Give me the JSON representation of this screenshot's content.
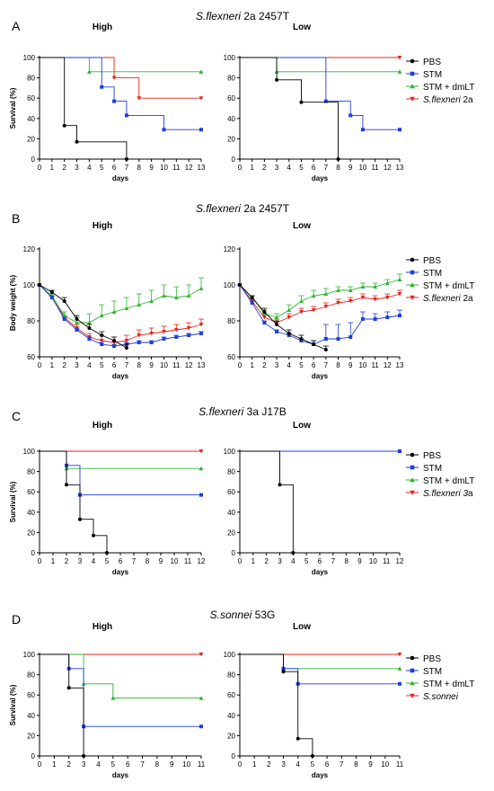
{
  "colors": {
    "PBS": "#000000",
    "STM": "#1f3fdd",
    "STM + dmLT": "#2fb52f",
    "Shigella": "#e8251c"
  },
  "chart_data": [
    {
      "panel": "A",
      "strain_italic": "S.flexneri",
      "strain_rest": " 2a 2457T",
      "type": "line",
      "ylabel": "Survival (%)",
      "xlabel": "days",
      "legend": [
        "PBS",
        "STM",
        "STM + dmLT"
      ],
      "legend_italic": "S.flexneri",
      "legend_rest": " 2a",
      "subplots": [
        {
          "title": "High",
          "xlim": [
            0,
            13
          ],
          "ylim": [
            0,
            100
          ],
          "xticks": [
            0,
            1,
            2,
            3,
            4,
            5,
            6,
            7,
            8,
            9,
            10,
            11,
            12,
            13
          ],
          "yticks": [
            0,
            20,
            40,
            60,
            80,
            100
          ],
          "series": [
            {
              "name": "PBS",
              "x": [
                0,
                2,
                3,
                7
              ],
              "y": [
                100,
                33,
                17,
                0
              ]
            },
            {
              "name": "STM",
              "x": [
                0,
                5,
                6,
                7,
                10,
                13
              ],
              "y": [
                100,
                71,
                57,
                43,
                29,
                29
              ]
            },
            {
              "name": "STM + dmLT",
              "x": [
                0,
                4,
                13
              ],
              "y": [
                100,
                86,
                86
              ]
            },
            {
              "name": "Shigella",
              "x": [
                0,
                6,
                8,
                13
              ],
              "y": [
                100,
                80,
                60,
                60
              ]
            }
          ]
        },
        {
          "title": "Low",
          "xlim": [
            0,
            13
          ],
          "ylim": [
            0,
            100
          ],
          "xticks": [
            0,
            1,
            2,
            3,
            4,
            5,
            6,
            7,
            8,
            9,
            10,
            11,
            12,
            13
          ],
          "yticks": [
            0,
            20,
            40,
            60,
            80,
            100
          ],
          "series": [
            {
              "name": "PBS",
              "x": [
                0,
                3,
                5,
                8
              ],
              "y": [
                100,
                78,
                56,
                0
              ]
            },
            {
              "name": "STM",
              "x": [
                0,
                7,
                9,
                10,
                13
              ],
              "y": [
                100,
                57,
                43,
                29,
                29
              ]
            },
            {
              "name": "STM + dmLT",
              "x": [
                0,
                3,
                13
              ],
              "y": [
                100,
                86,
                86
              ]
            },
            {
              "name": "Shigella",
              "x": [
                0,
                13
              ],
              "y": [
                100,
                100
              ]
            }
          ]
        }
      ]
    },
    {
      "panel": "B",
      "strain_italic": "S.flexneri",
      "strain_rest": " 2a 2457T",
      "type": "line_errorbar",
      "ylabel": "Body weight (%)",
      "xlabel": "days",
      "legend": [
        "PBS",
        "STM",
        "STM + dmLT"
      ],
      "legend_italic": "S.flexneri",
      "legend_rest": " 2a",
      "subplots": [
        {
          "title": "High",
          "xlim": [
            0,
            13
          ],
          "ylim": [
            60,
            120
          ],
          "xticks": [
            0,
            1,
            2,
            3,
            4,
            5,
            6,
            7,
            8,
            9,
            10,
            11,
            12,
            13
          ],
          "yticks": [
            60,
            80,
            100,
            120
          ],
          "series": [
            {
              "name": "PBS",
              "x": [
                0,
                1,
                2,
                3,
                4,
                5,
                6,
                7
              ],
              "y": [
                100,
                96,
                91,
                81,
                76,
                72,
                69,
                65
              ],
              "err": [
                0,
                1,
                2,
                2,
                2,
                2,
                2,
                2
              ]
            },
            {
              "name": "STM",
              "x": [
                0,
                1,
                2,
                3,
                4,
                5,
                6,
                7,
                8,
                9,
                10,
                11,
                12,
                13
              ],
              "y": [
                100,
                93,
                81,
                75,
                70,
                67,
                66,
                67,
                68,
                68,
                70,
                71,
                72,
                73
              ],
              "err": [
                0,
                1,
                1,
                1,
                1,
                1,
                1,
                1,
                1,
                1,
                1,
                1,
                1,
                1
              ]
            },
            {
              "name": "STM + dmLT",
              "x": [
                0,
                1,
                2,
                3,
                4,
                5,
                6,
                7,
                8,
                9,
                10,
                11,
                12,
                13
              ],
              "y": [
                100,
                94,
                83,
                79,
                79,
                83,
                85,
                87,
                89,
                91,
                94,
                93,
                94,
                98
              ],
              "err": [
                0,
                1,
                2,
                3,
                5,
                6,
                6,
                6,
                6,
                6,
                6,
                6,
                6,
                6
              ]
            },
            {
              "name": "Shigella",
              "x": [
                0,
                1,
                2,
                3,
                4,
                5,
                6,
                7,
                8,
                9,
                10,
                11,
                12,
                13
              ],
              "y": [
                100,
                93,
                82,
                76,
                71,
                69,
                68,
                69,
                72,
                73,
                74,
                75,
                76,
                78
              ],
              "err": [
                0,
                1,
                1,
                2,
                2,
                3,
                3,
                3,
                3,
                3,
                3,
                3,
                3,
                3
              ]
            }
          ]
        },
        {
          "title": "Low",
          "xlim": [
            0,
            13
          ],
          "ylim": [
            60,
            120
          ],
          "xticks": [
            0,
            1,
            2,
            3,
            4,
            5,
            6,
            7,
            8,
            9,
            10,
            11,
            12,
            13
          ],
          "yticks": [
            60,
            80,
            100,
            120
          ],
          "series": [
            {
              "name": "PBS",
              "x": [
                0,
                1,
                2,
                3,
                4,
                5,
                6,
                7
              ],
              "y": [
                100,
                93,
                85,
                78,
                73,
                70,
                67,
                64
              ],
              "err": [
                0,
                1,
                2,
                2,
                2,
                2,
                2,
                2
              ]
            },
            {
              "name": "STM",
              "x": [
                0,
                1,
                2,
                3,
                4,
                5,
                6,
                7,
                8,
                9,
                10,
                11,
                12,
                13
              ],
              "y": [
                100,
                90,
                79,
                74,
                72,
                69,
                67,
                70,
                70,
                71,
                81,
                81,
                82,
                83
              ],
              "err": [
                0,
                1,
                1,
                1,
                1,
                1,
                2,
                8,
                8,
                8,
                4,
                3,
                3,
                3
              ]
            },
            {
              "name": "STM + dmLT",
              "x": [
                0,
                1,
                2,
                3,
                4,
                5,
                6,
                7,
                8,
                9,
                10,
                11,
                12,
                13
              ],
              "y": [
                100,
                93,
                84,
                82,
                86,
                91,
                94,
                95,
                97,
                97,
                99,
                99,
                101,
                103
              ],
              "err": [
                0,
                1,
                2,
                2,
                3,
                3,
                3,
                3,
                2,
                2,
                2,
                2,
                2,
                3
              ]
            },
            {
              "name": "Shigella",
              "x": [
                0,
                1,
                2,
                3,
                4,
                5,
                6,
                7,
                8,
                9,
                10,
                11,
                12,
                13
              ],
              "y": [
                100,
                91,
                82,
                79,
                82,
                85,
                86,
                88,
                90,
                91,
                93,
                92,
                93,
                95
              ],
              "err": [
                0,
                1,
                2,
                2,
                2,
                2,
                2,
                2,
                2,
                2,
                2,
                2,
                2,
                2
              ]
            }
          ]
        }
      ]
    },
    {
      "panel": "C",
      "strain_italic": "S.flexneri",
      "strain_rest": " 3a J17B",
      "type": "line",
      "ylabel": "Survival (%)",
      "xlabel": "days",
      "legend": [
        "PBS",
        "STM",
        "STM + dmLT"
      ],
      "legend_italic": "S.flexneri 3",
      "legend_rest": "a",
      "subplots": [
        {
          "title": "High",
          "xlim": [
            0,
            12
          ],
          "ylim": [
            0,
            100
          ],
          "xticks": [
            0,
            1,
            2,
            3,
            4,
            5,
            6,
            7,
            8,
            9,
            10,
            11,
            12
          ],
          "yticks": [
            0,
            20,
            40,
            60,
            80,
            100
          ],
          "series": [
            {
              "name": "PBS",
              "x": [
                0,
                2,
                3,
                4,
                5
              ],
              "y": [
                100,
                67,
                33,
                17,
                0
              ]
            },
            {
              "name": "STM",
              "x": [
                0,
                2,
                3,
                12
              ],
              "y": [
                100,
                86,
                57,
                57
              ]
            },
            {
              "name": "STM + dmLT",
              "x": [
                0,
                2,
                12
              ],
              "y": [
                100,
                83,
                83
              ]
            },
            {
              "name": "Shigella",
              "x": [
                0,
                12
              ],
              "y": [
                100,
                100
              ]
            }
          ]
        },
        {
          "title": "Low",
          "xlim": [
            0,
            12
          ],
          "ylim": [
            0,
            100
          ],
          "xticks": [
            0,
            1,
            2,
            3,
            4,
            5,
            6,
            7,
            8,
            9,
            10,
            11,
            12
          ],
          "yticks": [
            0,
            20,
            40,
            60,
            80,
            100
          ],
          "series": [
            {
              "name": "PBS",
              "x": [
                0,
                3,
                4
              ],
              "y": [
                100,
                67,
                0
              ]
            },
            {
              "name": "STM",
              "x": [
                0,
                12
              ],
              "y": [
                100,
                100
              ]
            },
            {
              "name": "STM + dmLT",
              "x": [
                0,
                12
              ],
              "y": [
                100,
                100
              ]
            },
            {
              "name": "Shigella",
              "x": [
                0,
                12
              ],
              "y": [
                100,
                100
              ]
            }
          ]
        }
      ]
    },
    {
      "panel": "D",
      "strain_italic": "S.sonnei",
      "strain_rest": " 53G",
      "type": "line",
      "ylabel": "Survival (%)",
      "xlabel": "days",
      "legend": [
        "PBS",
        "STM",
        "STM + dmLT"
      ],
      "legend_italic": "S.sonnei",
      "legend_rest": "",
      "subplots": [
        {
          "title": "High",
          "xlim": [
            0,
            11
          ],
          "ylim": [
            0,
            100
          ],
          "xticks": [
            0,
            1,
            2,
            3,
            4,
            5,
            6,
            7,
            8,
            9,
            10,
            11
          ],
          "yticks": [
            0,
            20,
            40,
            60,
            80,
            100
          ],
          "series": [
            {
              "name": "PBS",
              "x": [
                0,
                2,
                3
              ],
              "y": [
                100,
                67,
                0
              ]
            },
            {
              "name": "STM",
              "x": [
                0,
                2,
                3,
                11
              ],
              "y": [
                100,
                86,
                29,
                29
              ]
            },
            {
              "name": "STM + dmLT",
              "x": [
                0,
                3,
                5,
                11
              ],
              "y": [
                100,
                71,
                57,
                57
              ]
            },
            {
              "name": "Shigella",
              "x": [
                0,
                11
              ],
              "y": [
                100,
                100
              ]
            }
          ]
        },
        {
          "title": "Low",
          "xlim": [
            0,
            11
          ],
          "ylim": [
            0,
            100
          ],
          "xticks": [
            0,
            1,
            2,
            3,
            4,
            5,
            6,
            7,
            8,
            9,
            10,
            11
          ],
          "yticks": [
            0,
            20,
            40,
            60,
            80,
            100
          ],
          "series": [
            {
              "name": "PBS",
              "x": [
                0,
                3,
                4,
                5
              ],
              "y": [
                100,
                83,
                17,
                0
              ]
            },
            {
              "name": "STM",
              "x": [
                0,
                3,
                4,
                11
              ],
              "y": [
                100,
                86,
                71,
                71
              ]
            },
            {
              "name": "STM + dmLT",
              "x": [
                0,
                3,
                11
              ],
              "y": [
                100,
                86,
                86
              ]
            },
            {
              "name": "Shigella",
              "x": [
                0,
                11
              ],
              "y": [
                100,
                100
              ]
            }
          ]
        }
      ]
    }
  ]
}
